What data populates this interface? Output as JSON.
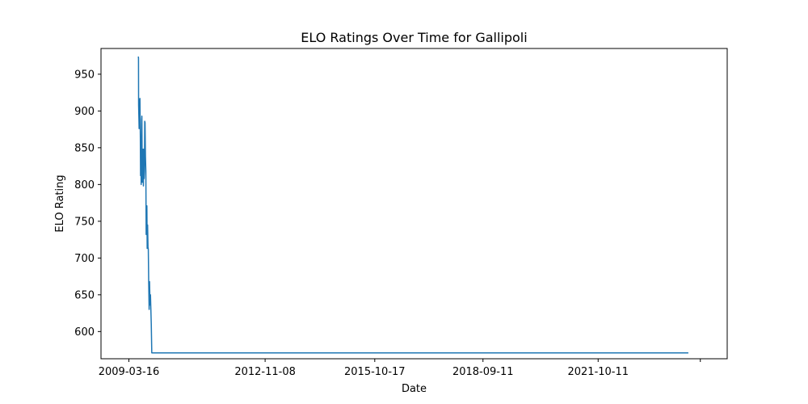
{
  "chart_data": {
    "type": "line",
    "title": "ELO Ratings Over Time for Gallipoli",
    "xlabel": "Date",
    "ylabel": "ELO Rating",
    "x_tick_labels": [
      "2009-03-16",
      "2012-11-08",
      "2015-10-17",
      "2018-09-11",
      "2021-10-11",
      ""
    ],
    "x_ticks": [
      0,
      1333,
      2406,
      3465,
      4592,
      5592
    ],
    "y_ticks": [
      600,
      650,
      700,
      750,
      800,
      850,
      900,
      950
    ],
    "ylim": [
      563,
      985
    ],
    "xlim": [
      -273,
      5855
    ],
    "grid": false,
    "series": [
      {
        "name": "Gallipoli",
        "color": "#1f77b4",
        "x": [
          92,
          94,
          95,
          98,
          100,
          104,
          108,
          112,
          114,
          117,
          120,
          125,
          127,
          131,
          134,
          136,
          139,
          142,
          145,
          149,
          152,
          155,
          158,
          162,
          166,
          169,
          172,
          176,
          179,
          183,
          187,
          190,
          194,
          198,
          202,
          207,
          211,
          215,
          219,
          224,
          228,
          233,
          238,
          242,
          247,
          252,
          256,
          262,
          266,
          271,
          276,
          280,
          284,
          287,
          291,
          296,
          298,
          302,
          306,
          310,
          315,
          323,
          5475
        ],
        "y": [
          974,
          972,
          908,
          890,
          876,
          915,
          917,
          864,
          812,
          860,
          800,
          888,
          893,
          803,
          848,
          808,
          848,
          798,
          848,
          808,
          818,
          886,
          884,
          838,
          818,
          732,
          768,
          771,
          713,
          745,
          715,
          712,
          665,
          630,
          668,
          636,
          650,
          630,
          610,
          571,
          571,
          571,
          571,
          571,
          571,
          571,
          571,
          571,
          571,
          571,
          571,
          571,
          571,
          571,
          571,
          571,
          571,
          571,
          571,
          571,
          571,
          571,
          571
        ]
      }
    ]
  }
}
